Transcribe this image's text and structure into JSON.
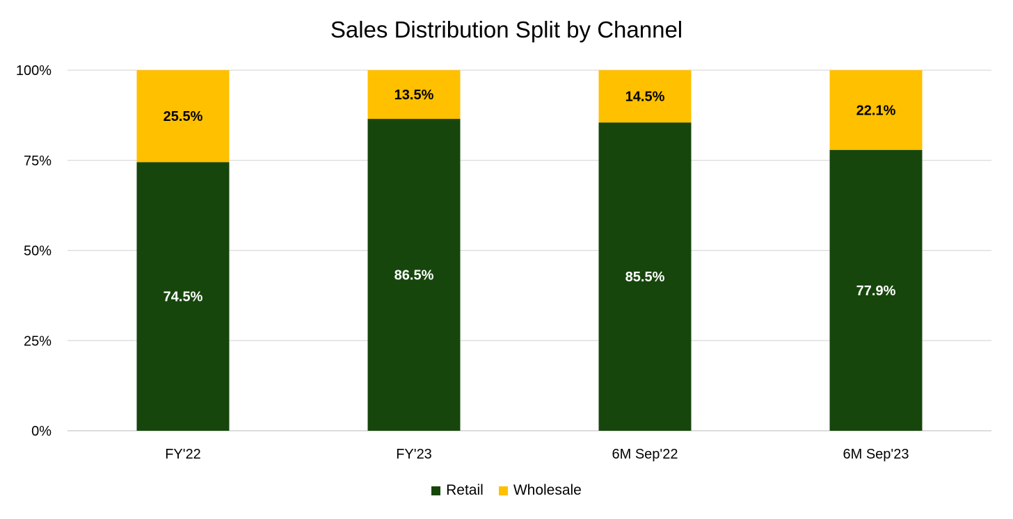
{
  "chart_data": {
    "type": "bar",
    "stacked": true,
    "title": "Sales Distribution Split by Channel",
    "categories": [
      "FY'22",
      "FY'23",
      "6M Sep'22",
      "6M Sep'23"
    ],
    "series": [
      {
        "name": "Retail",
        "color": "#16460c",
        "label_color": "#ffffff",
        "values": [
          74.5,
          86.5,
          85.5,
          77.9
        ],
        "labels": [
          "74.5%",
          "86.5%",
          "85.5%",
          "77.9%"
        ]
      },
      {
        "name": "Wholesale",
        "color": "#ffc000",
        "label_color": "#000000",
        "values": [
          25.5,
          13.5,
          14.5,
          22.1
        ],
        "labels": [
          "25.5%",
          "13.5%",
          "14.5%",
          "22.1%"
        ]
      }
    ],
    "ylim": [
      0,
      100
    ],
    "yticks": [
      0,
      25,
      50,
      75,
      100
    ],
    "ytick_labels": [
      "0%",
      "25%",
      "50%",
      "75%",
      "100%"
    ],
    "grid": true,
    "legend_position": "bottom"
  }
}
